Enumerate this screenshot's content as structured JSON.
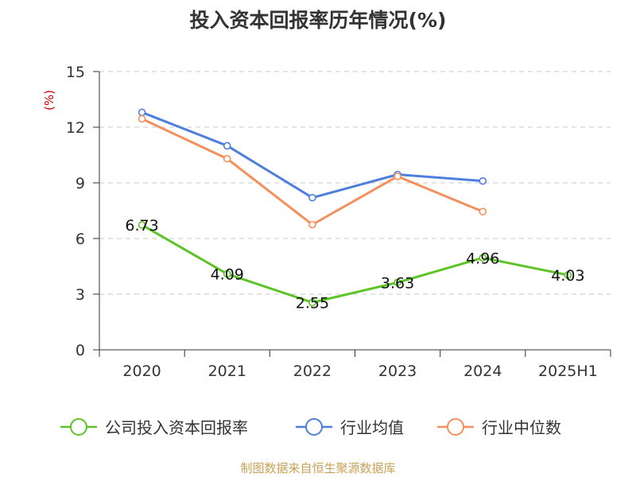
{
  "title": "投入资本回报率历年情况(%)",
  "source": "制图数据来自恒生聚源数据库",
  "chart_data": {
    "type": "line",
    "title": "投入资本回报率历年情况(%)",
    "ylabel": "(%)",
    "xlabel": "",
    "categories": [
      "2020",
      "2021",
      "2022",
      "2023",
      "2024",
      "2025H1"
    ],
    "ylim": [
      0,
      15
    ],
    "yticks": [
      0,
      3,
      6,
      9,
      12,
      15
    ],
    "grid": true,
    "legend_position": "bottom",
    "series": [
      {
        "name": "公司投入资本回报率",
        "color": "#5cc427",
        "values": [
          6.73,
          4.09,
          2.55,
          3.63,
          4.96,
          4.03
        ],
        "labels": [
          "6.73",
          "4.09",
          "2.55",
          "3.63",
          "4.96",
          "4.03"
        ]
      },
      {
        "name": "行业均值",
        "color": "#4f7fdc",
        "values": [
          12.8,
          11.0,
          8.2,
          9.45,
          9.1,
          null
        ]
      },
      {
        "name": "行业中位数",
        "color": "#f4905c",
        "values": [
          12.45,
          10.3,
          6.75,
          9.35,
          7.45,
          null
        ]
      }
    ]
  }
}
